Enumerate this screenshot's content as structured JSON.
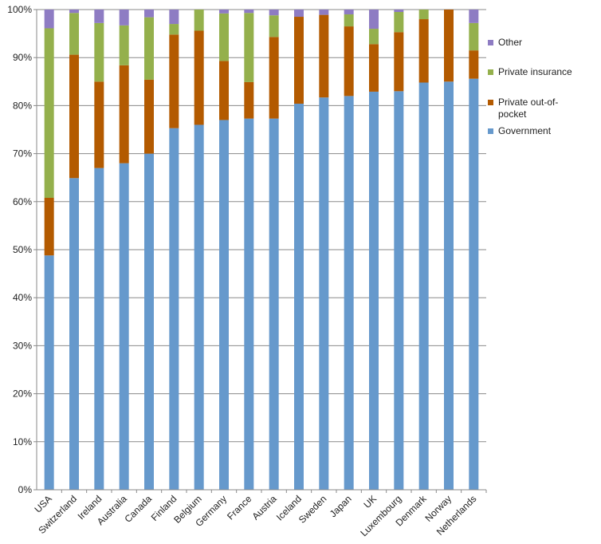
{
  "chart_data": {
    "type": "bar",
    "stacked": true,
    "title": "",
    "xlabel": "",
    "ylabel": "",
    "ylim": [
      0,
      100
    ],
    "yticks": [
      "0%",
      "10%",
      "20%",
      "30%",
      "40%",
      "50%",
      "60%",
      "70%",
      "80%",
      "90%",
      "100%"
    ],
    "grid": true,
    "legend_position": "right",
    "categories": [
      "USA",
      "Switzerland",
      "Ireland",
      "Australia",
      "Canada",
      "Finland",
      "Belgium",
      "Germany",
      "France",
      "Austria",
      "Iceland",
      "Sweden",
      "Japan",
      "UK",
      "Luxembourg",
      "Denmark",
      "Norway",
      "Netherlands"
    ],
    "series": [
      {
        "name": "Government",
        "color": "#6699cc",
        "values": [
          48.8,
          64.9,
          67.0,
          68.0,
          70.0,
          75.3,
          76.0,
          77.0,
          77.3,
          77.3,
          80.4,
          81.7,
          82.0,
          82.9,
          83.0,
          84.8,
          85.0,
          85.6
        ]
      },
      {
        "name": "Private out-of-pocket",
        "color": "#b35a00",
        "values": [
          12.0,
          25.7,
          18.0,
          20.4,
          15.4,
          19.5,
          19.6,
          12.3,
          7.6,
          17.0,
          18.1,
          17.2,
          14.5,
          9.9,
          12.3,
          13.2,
          15.0,
          5.9
        ]
      },
      {
        "name": "Private insurance",
        "color": "#94b04c",
        "values": [
          35.3,
          8.7,
          12.2,
          8.3,
          13.0,
          2.2,
          4.4,
          9.9,
          14.4,
          4.5,
          0.0,
          0.0,
          2.5,
          3.2,
          4.2,
          2.0,
          0.0,
          5.7
        ]
      },
      {
        "name": "Other",
        "color": "#8e7cc3",
        "values": [
          3.9,
          0.7,
          2.8,
          3.3,
          1.6,
          3.0,
          0.0,
          0.8,
          0.7,
          1.2,
          1.5,
          1.1,
          1.0,
          4.0,
          0.5,
          0.0,
          0.0,
          2.8
        ]
      }
    ],
    "legend_order": [
      "Other",
      "Private insurance",
      "Private out-of-pocket",
      "Government"
    ]
  }
}
